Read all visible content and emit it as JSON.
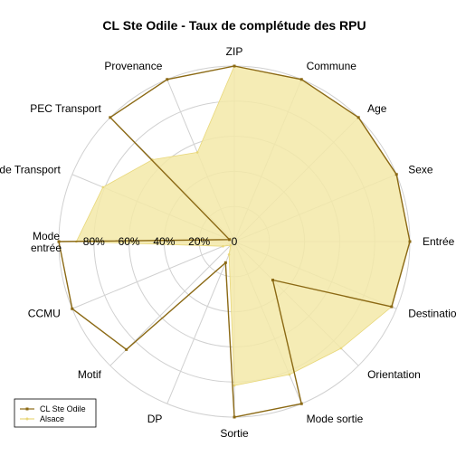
{
  "chart_data": {
    "type": "radar",
    "title": "CL Ste Odile - Taux de complétude des RPU",
    "categories": [
      "ZIP",
      "Commune",
      "Age",
      "Sexe",
      "Entrée",
      "Destination",
      "Orientation",
      "Mode sortie",
      "Sortie",
      "DP",
      "Motif",
      "CCMU",
      "Mode entrée",
      "Mode Transport",
      "PEC Transport",
      "Provenance"
    ],
    "category_display": [
      "ZIP",
      "Commune",
      "Age",
      "Sexe",
      "Entrée",
      "Destination",
      "Orientation",
      "Mode sortie",
      "Sortie",
      "DP",
      "Motif",
      "CCMU",
      [
        "Mode",
        "entrée"
      ],
      "Mode Transport",
      "PEC Transport",
      "Provenance"
    ],
    "radial_ticks": [
      "0",
      "20%",
      "40%",
      "60%",
      "80%"
    ],
    "rlim": [
      0,
      100
    ],
    "grid": true,
    "legend_position": "bottom-left",
    "series": [
      {
        "name": "CL Ste Odile",
        "color": "#8B6914",
        "fill": "none",
        "marker": "square",
        "values": [
          100,
          100,
          100,
          100,
          100,
          97,
          31,
          100,
          100,
          13,
          87,
          100,
          100,
          3,
          100,
          100
        ]
      },
      {
        "name": "Alsace",
        "color": "#e8d77a",
        "fill": "#f3e9a8",
        "marker": "circle",
        "values": [
          100,
          100,
          100,
          100,
          100,
          97,
          86,
          82,
          82,
          8,
          3,
          7,
          90,
          81,
          66,
          55
        ]
      }
    ]
  }
}
